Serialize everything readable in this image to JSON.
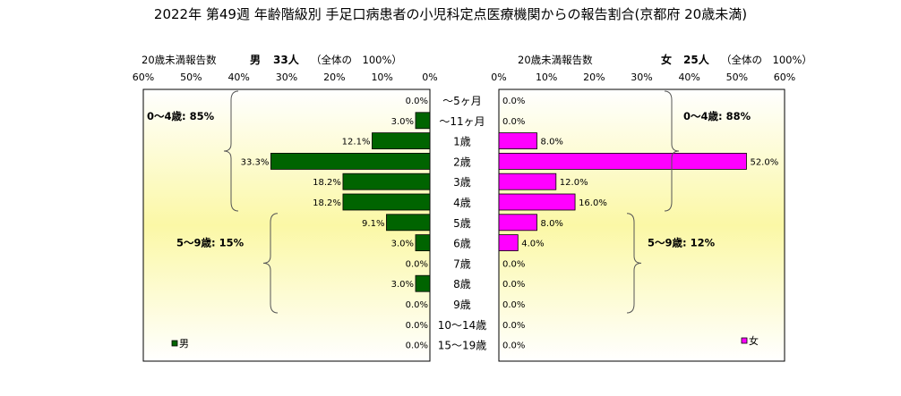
{
  "title": "2022年 第49週  年齢階級別 手足口病患者の小児科定点医療機関からの報告割合(京都府 20歳未満)",
  "chart_data": {
    "type": "bar",
    "orientation": "horizontal",
    "layout": "population-pyramid",
    "categories": [
      "～5ヶ月",
      "～11ヶ月",
      "1歳",
      "2歳",
      "3歳",
      "4歳",
      "5歳",
      "6歳",
      "7歳",
      "8歳",
      "9歳",
      "10～14歳",
      "15～19歳"
    ],
    "x_ticks": [
      "60%",
      "50%",
      "40%",
      "30%",
      "20%",
      "10%",
      "0%"
    ],
    "x_ticks_right": [
      "0%",
      "10%",
      "20%",
      "30%",
      "40%",
      "50%",
      "60%"
    ],
    "xlim": [
      0,
      60
    ],
    "series": [
      {
        "name": "男",
        "side": "left",
        "color": "#006400",
        "header_label": "20歳未満報告数",
        "header_sex": "男",
        "header_count": "33人",
        "header_total": "（全体の　100%）",
        "values": [
          0.0,
          3.0,
          12.1,
          33.3,
          18.2,
          18.2,
          9.1,
          3.0,
          0.0,
          3.0,
          0.0,
          0.0,
          0.0
        ],
        "data_labels": [
          "0.0%",
          "3.0%",
          "12.1%",
          "33.3%",
          "18.2%",
          "18.2%",
          "9.1%",
          "3.0%",
          "0.0%",
          "3.0%",
          "0.0%",
          "0.0%",
          "0.0%"
        ],
        "groups": [
          {
            "label": "0～4歳: 85%",
            "from": 0,
            "to": 5
          },
          {
            "label": "5～9歳: 15%",
            "from": 6,
            "to": 10
          }
        ]
      },
      {
        "name": "女",
        "side": "right",
        "color": "#ff00ff",
        "header_label": "20歳未満報告数",
        "header_sex": "女",
        "header_count": "25人",
        "header_total": "（全体の　100%）",
        "values": [
          0.0,
          0.0,
          8.0,
          52.0,
          12.0,
          16.0,
          8.0,
          4.0,
          0.0,
          0.0,
          0.0,
          0.0,
          0.0
        ],
        "data_labels": [
          "0.0%",
          "0.0%",
          "8.0%",
          "52.0%",
          "12.0%",
          "16.0%",
          "8.0%",
          "4.0%",
          "0.0%",
          "0.0%",
          "0.0%",
          "0.0%",
          "0.0%"
        ],
        "groups": [
          {
            "label": "0～4歳: 88%",
            "from": 0,
            "to": 5
          },
          {
            "label": "5～9歳: 12%",
            "from": 6,
            "to": 10
          }
        ]
      }
    ],
    "grid": false,
    "legend": "bottom-left / bottom-right"
  }
}
